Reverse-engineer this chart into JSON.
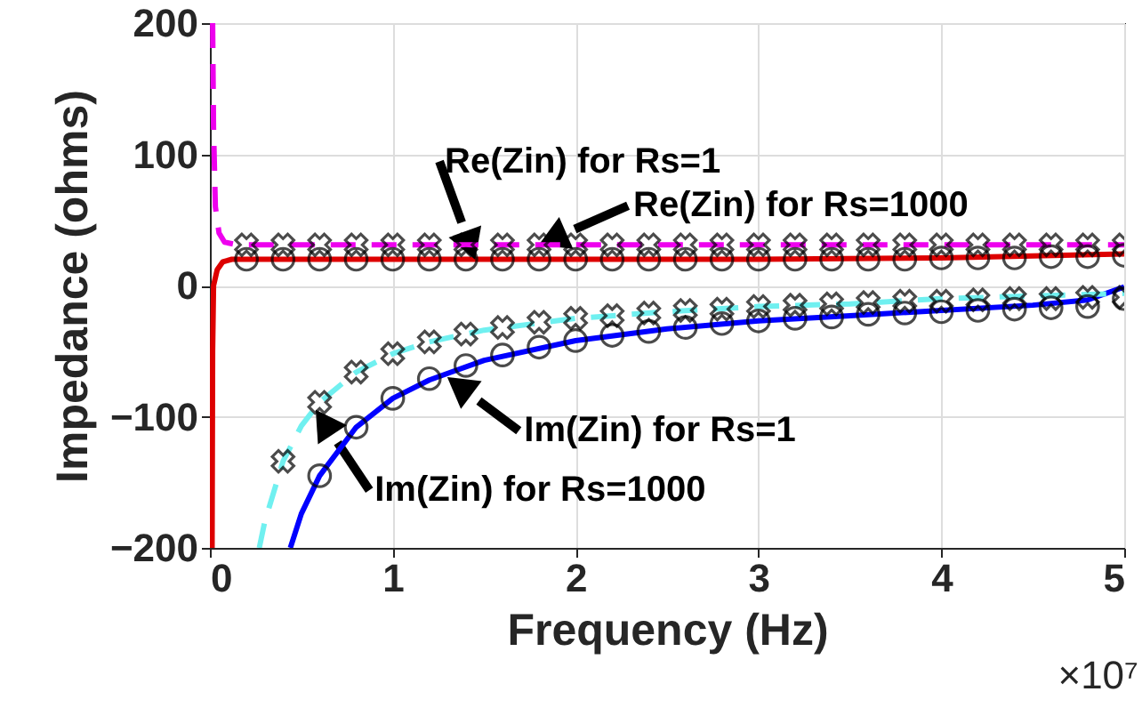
{
  "chart_data": {
    "type": "line",
    "xlabel": "Frequency (Hz)",
    "ylabel": "Impedance (ohms)",
    "xlim": [
      0,
      5
    ],
    "ylim": [
      -200,
      200
    ],
    "xticks": [
      0,
      1,
      2,
      3,
      4,
      5
    ],
    "yticks": [
      -200,
      -100,
      0,
      100,
      200
    ],
    "grid": true,
    "x": [
      0.2,
      0.4,
      0.6,
      0.8,
      1.0,
      1.2,
      1.4,
      1.6,
      1.8,
      2.0,
      2.2,
      2.4,
      2.6,
      2.8,
      3.0,
      3.2,
      3.4,
      3.6,
      3.8,
      4.0,
      4.2,
      4.4,
      4.6,
      4.8,
      5.0
    ],
    "series": [
      {
        "color": "#dd0000",
        "line_style": "solid",
        "x": [
          0.012,
          0.015,
          0.02,
          0.04,
          0.07,
          0.12,
          3.0,
          4.0,
          5.0
        ],
        "values": [
          -200,
          -50,
          0,
          12,
          18,
          20,
          20,
          21,
          24
        ]
      },
      {
        "color": "#ee00ee",
        "line_style": "dashed",
        "x": [
          0.015,
          0.02,
          0.03,
          0.05,
          0.08,
          0.15,
          5.0
        ],
        "values": [
          200,
          120,
          60,
          40,
          33,
          31,
          31
        ]
      },
      {
        "color": "#0000ff",
        "line_style": "solid",
        "x": [
          0.44,
          0.5,
          0.6,
          0.8,
          1.0,
          1.2,
          1.5,
          2.0,
          2.5,
          3.0,
          3.5,
          4.0,
          4.5,
          4.8,
          5.0
        ],
        "values": [
          -200,
          -174,
          -145,
          -108,
          -86,
          -72,
          -57,
          -42,
          -33,
          -27,
          -23,
          -19,
          -15,
          -11,
          -1
        ]
      },
      {
        "color": "#70f0f0",
        "line_style": "dashed",
        "x": [
          0.27,
          0.3,
          0.4,
          0.5,
          0.6,
          0.8,
          1.0,
          1.2,
          1.5,
          2.0,
          2.5,
          3.0,
          3.5,
          4.0,
          4.5,
          5.0
        ],
        "values": [
          -200,
          -180,
          -134,
          -107,
          -89,
          -66,
          -52,
          -43,
          -34,
          -25,
          -20,
          -16,
          -14,
          -10,
          -8,
          -6
        ]
      },
      {
        "type": "scatter",
        "color": "#000000",
        "marker": "circle",
        "values": [
          20,
          20,
          20,
          20,
          20,
          20,
          20,
          20,
          20,
          20,
          20,
          20,
          20,
          20,
          20,
          20,
          20,
          20,
          20,
          21,
          21,
          21,
          22,
          22,
          23
        ]
      },
      {
        "type": "scatter",
        "color": "#000000",
        "marker": "cross",
        "values": [
          31,
          31,
          31,
          31,
          31,
          31,
          31,
          31,
          31,
          31,
          31,
          31,
          31,
          31,
          31,
          31,
          31,
          31,
          31,
          31,
          31,
          31,
          31,
          31,
          31
        ]
      },
      {
        "type": "scatter",
        "color": "#000000",
        "marker": "circle",
        "values": [
          null,
          null,
          -145,
          -108,
          -86,
          -71,
          -61,
          -53,
          -47,
          -42,
          -38,
          -35,
          -32,
          -29,
          -27,
          -25,
          -24,
          -22,
          -21,
          -20,
          -19,
          -18,
          -17,
          -16,
          -10
        ]
      },
      {
        "type": "scatter",
        "color": "#000000",
        "marker": "cross",
        "values": [
          null,
          -134,
          -89,
          -66,
          -52,
          -43,
          -37,
          -32,
          -28,
          -25,
          -23,
          -21,
          -19,
          -18,
          -16,
          -15,
          -14,
          -13,
          -12,
          -12,
          -11,
          -10,
          -10,
          -9,
          -9
        ]
      }
    ],
    "annotations": [
      {
        "text": "Re(Zin) for Rs=1",
        "x": 1.45,
        "y": 20
      },
      {
        "text": "Re(Zin) for Rs=1000",
        "x": 1.8,
        "y": 31
      },
      {
        "text": "Im(Zin) for Rs=1",
        "x": 1.3,
        "y": -70
      },
      {
        "text": "Im(Zin) for Rs=1000",
        "x": 0.58,
        "y": -95
      },
      "×10⁷"
    ]
  }
}
